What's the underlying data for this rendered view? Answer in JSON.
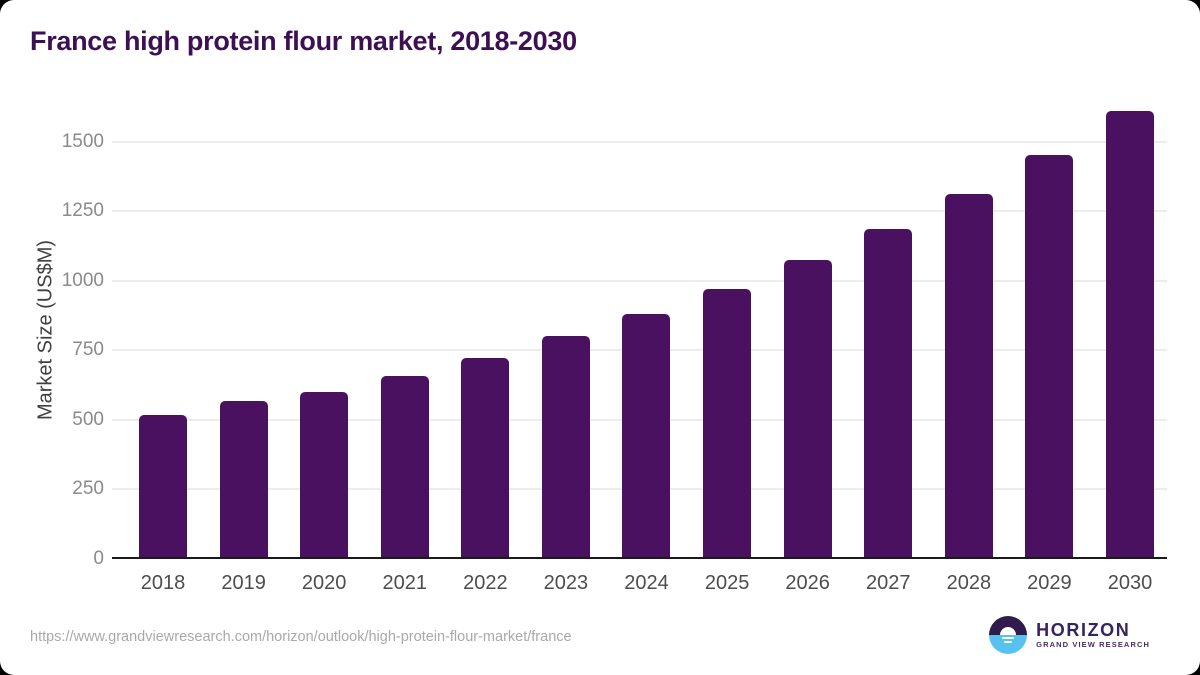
{
  "title": "France high protein flour market, 2018-2030",
  "y_axis_title": "Market Size (US$M)",
  "source_url": "https://www.grandviewresearch.com/horizon/outlook/high-protein-flour-market/france",
  "logo": {
    "name": "HORIZON",
    "subtitle": "GRAND VIEW RESEARCH"
  },
  "colors": {
    "bar": "#4a1161",
    "title": "#3c1053",
    "y_tick": "#8a8a8a",
    "x_tick": "#4d4d4d",
    "gridline": "#ececec",
    "axis_line": "#1a1a1a",
    "source_url": "#a9a9a9",
    "logo_purple": "#2f1c4d",
    "logo_blue": "#57c2f0",
    "logo_text": "#372360",
    "logo_subtitle_text": "#4a2b6b"
  },
  "chart_data": {
    "type": "bar",
    "title": "France high protein flour market, 2018-2030",
    "xlabel": "",
    "ylabel": "Market Size (US$M)",
    "categories": [
      "2018",
      "2019",
      "2020",
      "2021",
      "2022",
      "2023",
      "2024",
      "2025",
      "2026",
      "2027",
      "2028",
      "2029",
      "2030"
    ],
    "values": [
      516,
      568,
      600,
      657,
      722,
      800,
      878,
      970,
      1072,
      1185,
      1310,
      1450,
      1610
    ],
    "ylim": [
      0,
      1650
    ],
    "yticks": [
      0,
      250,
      500,
      750,
      1000,
      1250,
      1500
    ],
    "grid": true,
    "legend": false
  }
}
